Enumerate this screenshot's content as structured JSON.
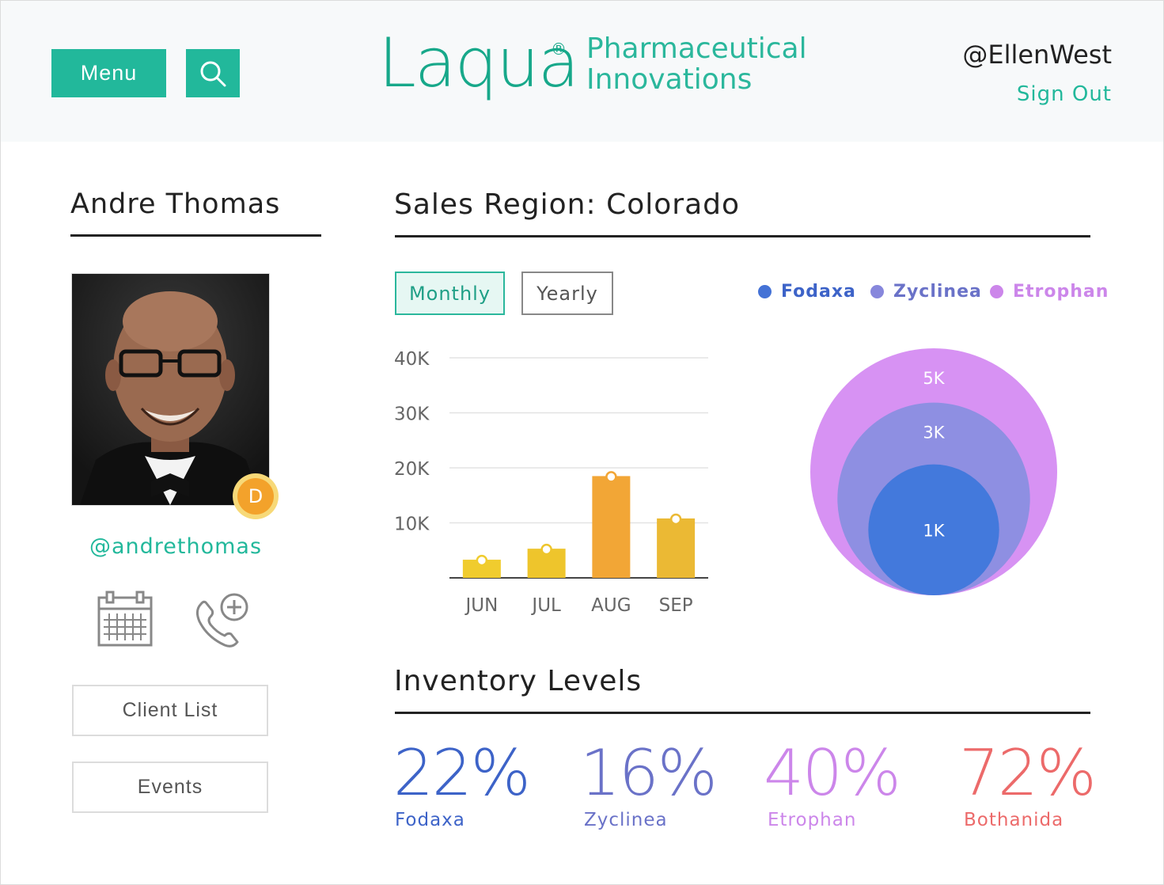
{
  "header": {
    "menu_label": "Menu",
    "logo_word": "Laqua",
    "logo_reg": "®",
    "logo_line1": "Pharmaceutical",
    "logo_line2": "Innovations",
    "user_handle": "@EllenWest",
    "sign_out": "Sign Out"
  },
  "profile": {
    "name": "Andre Thomas",
    "badge": "D",
    "handle": "@andrethomas",
    "buttons": [
      "Client List",
      "Events"
    ]
  },
  "sales": {
    "title": "Sales Region: Colorado",
    "toggle_active": "Monthly",
    "toggle_inactive": "Yearly",
    "legend": [
      {
        "name": "Fodaxa",
        "color": "#4472d6"
      },
      {
        "name": "Zyclinea",
        "color": "#8787dc"
      },
      {
        "name": "Etrophan",
        "color": "#cc86ea"
      }
    ]
  },
  "chart_data": [
    {
      "type": "bar",
      "categories": [
        "JUN",
        "JUL",
        "AUG",
        "SEP"
      ],
      "values": [
        3300,
        5300,
        18500,
        10800
      ],
      "ylim": [
        0,
        40000
      ],
      "yticks": [
        "40K",
        "30K",
        "20K",
        "10K"
      ],
      "colors": [
        "#f0cc2e",
        "#eec52c",
        "#f2a636",
        "#ebb934"
      ],
      "grid": true
    },
    {
      "type": "bubble",
      "series": [
        {
          "name": "Etrophan",
          "label": "5K",
          "value": 5000,
          "color": "#d58cf2"
        },
        {
          "name": "Zyclinea",
          "label": "3K",
          "value": 3000,
          "color": "#8a8fe0"
        },
        {
          "name": "Fodaxa",
          "label": "1K",
          "value": 1000,
          "color": "#3f78db"
        }
      ]
    }
  ],
  "inventory": {
    "title": "Inventory Levels",
    "items": [
      {
        "value": "22%",
        "name": "Fodaxa",
        "color": "#3d63c8"
      },
      {
        "value": "16%",
        "name": "Zyclinea",
        "color": "#6a72c8"
      },
      {
        "value": "40%",
        "name": "Etrophan",
        "color": "#cc86ea"
      },
      {
        "value": "72%",
        "name": "Bothanida",
        "color": "#ec6a6a"
      }
    ]
  }
}
